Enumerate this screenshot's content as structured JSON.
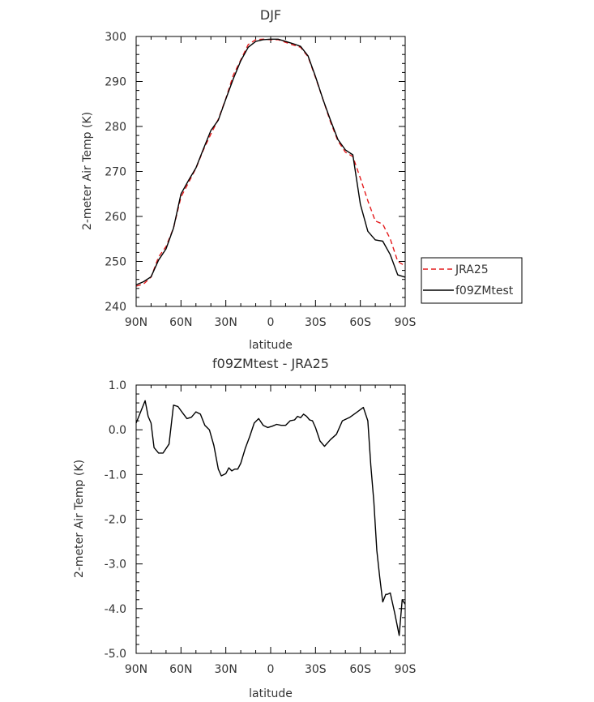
{
  "chart_data": [
    {
      "type": "line",
      "title": "DJF",
      "xlabel": "latitude",
      "ylabel": "2-meter Air Temp (K)",
      "xlim": [
        -90,
        90
      ],
      "ylim": [
        240,
        300
      ],
      "x_ticks": [
        -90,
        -60,
        -30,
        0,
        30,
        60,
        90
      ],
      "x_tick_labels": [
        "90N",
        "60N",
        "30N",
        "0",
        "30S",
        "60S",
        "90S"
      ],
      "y_ticks": [
        240,
        250,
        260,
        270,
        280,
        290,
        300
      ],
      "y_tick_labels": [
        "240",
        "250",
        "260",
        "270",
        "280",
        "290",
        "300"
      ],
      "legend_position": "right",
      "series": [
        {
          "name": "JRA25",
          "color": "#e41a1c",
          "dash": "dashed",
          "x": [
            -90,
            -85,
            -80,
            -75,
            -70,
            -65,
            -60,
            -55,
            -50,
            -45,
            -40,
            -35,
            -30,
            -25,
            -20,
            -15,
            -10,
            -5,
            0,
            5,
            10,
            15,
            20,
            25,
            30,
            35,
            40,
            45,
            50,
            55,
            60,
            65,
            70,
            75,
            80,
            85,
            90
          ],
          "values": [
            244.5,
            245.0,
            246.5,
            251.0,
            253.3,
            257.4,
            264.3,
            267.5,
            270.7,
            274.8,
            278.3,
            281.6,
            286.2,
            291.4,
            294.8,
            298.2,
            299.3,
            299.4,
            299.3,
            299.3,
            298.7,
            298.1,
            297.6,
            295.5,
            290.9,
            286.0,
            281.0,
            276.8,
            274.3,
            273.3,
            268.5,
            263.5,
            259.0,
            258.3,
            255.0,
            250.0,
            249.0
          ]
        },
        {
          "name": "f09ZMtest",
          "color": "#000000",
          "dash": "solid",
          "x": [
            -90,
            -85,
            -80,
            -75,
            -70,
            -65,
            -60,
            -55,
            -50,
            -45,
            -40,
            -35,
            -30,
            -25,
            -20,
            -15,
            -10,
            -5,
            0,
            5,
            10,
            15,
            20,
            25,
            30,
            35,
            40,
            45,
            50,
            55,
            60,
            65,
            70,
            75,
            80,
            85,
            90
          ],
          "values": [
            244.8,
            245.5,
            246.6,
            250.3,
            252.8,
            257.4,
            265.0,
            268.0,
            270.8,
            275.0,
            279.1,
            281.4,
            286.1,
            290.6,
            294.6,
            297.6,
            298.9,
            299.3,
            299.4,
            299.4,
            298.9,
            298.4,
            297.8,
            295.7,
            291.1,
            286.0,
            281.4,
            277.1,
            274.8,
            273.7,
            262.7,
            256.7,
            254.8,
            254.5,
            251.5,
            247.0,
            246.5
          ]
        }
      ]
    },
    {
      "type": "line",
      "title": "f09ZMtest - JRA25",
      "xlabel": "latitude",
      "ylabel": "2-meter Air Temp (K)",
      "xlim": [
        -90,
        90
      ],
      "ylim": [
        -5,
        1
      ],
      "x_ticks": [
        -90,
        -60,
        -30,
        0,
        30,
        60,
        90
      ],
      "x_tick_labels": [
        "90N",
        "60N",
        "30N",
        "0",
        "30S",
        "60S",
        "90S"
      ],
      "y_ticks": [
        -5,
        -4,
        -3,
        -2,
        -1,
        0,
        1
      ],
      "y_tick_labels": [
        "-5.0",
        "-4.0",
        "-3.0",
        "-2.0",
        "-1.0",
        "0.0",
        "1.0"
      ],
      "series": [
        {
          "color": "#000000",
          "dash": "solid",
          "x": [
            -90,
            -84,
            -82,
            -80,
            -78,
            -75,
            -72,
            -68,
            -65,
            -62,
            -59,
            -56,
            -53,
            -50,
            -47,
            -44,
            -41,
            -38,
            -35,
            -33,
            -30,
            -28,
            -26,
            -24,
            -22,
            -20,
            -17,
            -14,
            -11,
            -8,
            -5,
            -2,
            1,
            4,
            7,
            10,
            13,
            16,
            18,
            20,
            22,
            24,
            26,
            28,
            30,
            33,
            36,
            40,
            44,
            48,
            53,
            58,
            62,
            65,
            67,
            69,
            71,
            73,
            75,
            77,
            78,
            80,
            83,
            86,
            88,
            90
          ],
          "values": [
            0.15,
            0.65,
            0.3,
            0.15,
            -0.4,
            -0.52,
            -0.52,
            -0.32,
            0.55,
            0.52,
            0.38,
            0.25,
            0.28,
            0.4,
            0.35,
            0.1,
            0.0,
            -0.35,
            -0.88,
            -1.03,
            -0.98,
            -0.85,
            -0.92,
            -0.88,
            -0.88,
            -0.75,
            -0.42,
            -0.15,
            0.15,
            0.25,
            0.1,
            0.05,
            0.08,
            0.12,
            0.1,
            0.1,
            0.2,
            0.22,
            0.3,
            0.27,
            0.35,
            0.3,
            0.22,
            0.2,
            0.05,
            -0.25,
            -0.37,
            -0.22,
            -0.1,
            0.2,
            0.28,
            0.4,
            0.5,
            0.2,
            -0.8,
            -1.6,
            -2.7,
            -3.3,
            -3.85,
            -3.68,
            -3.68,
            -3.65,
            -4.1,
            -4.6,
            -3.8,
            -3.9
          ]
        }
      ]
    }
  ]
}
